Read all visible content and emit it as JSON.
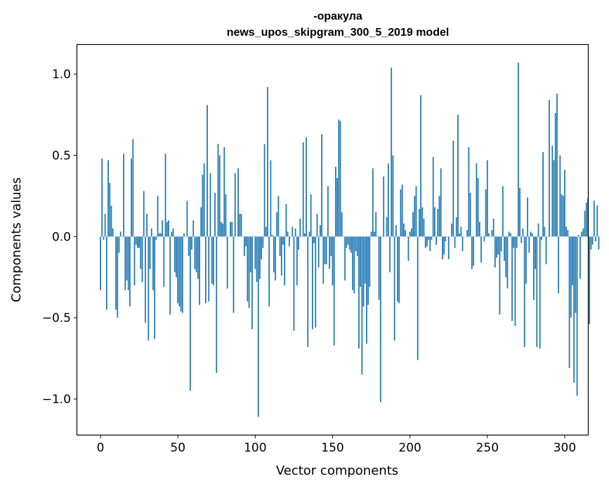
{
  "chart_data": {
    "type": "bar",
    "title": "-оракула",
    "subtitle": "news_upos_skipgram_300_5_2019 model",
    "xlabel": "Vector components",
    "ylabel": "Components values",
    "xlim": [
      -15,
      315
    ],
    "ylim": [
      -1.22,
      1.18
    ],
    "xticks": [
      0,
      50,
      100,
      150,
      200,
      250,
      300
    ],
    "yticks": [
      -1.0,
      -0.5,
      0.0,
      0.5,
      1.0
    ],
    "xtick_labels": [
      "0",
      "50",
      "100",
      "150",
      "200",
      "250",
      "300"
    ],
    "ytick_labels": [
      "−1.0",
      "−0.5",
      "0.0",
      "0.5",
      "1.0"
    ],
    "grid": false,
    "legend": "none",
    "bar_color": "#1f77b4",
    "values": [
      -0.33,
      0.48,
      -0.02,
      0.14,
      -0.45,
      0.47,
      0.33,
      0.19,
      0.05,
      0.0,
      -0.45,
      -0.5,
      -0.1,
      0.03,
      0.0,
      0.51,
      -0.33,
      -0.27,
      -0.33,
      -0.43,
      0.48,
      0.6,
      -0.3,
      -0.05,
      -0.07,
      -0.07,
      -0.2,
      -0.28,
      0.28,
      -0.53,
      0.14,
      -0.64,
      -0.2,
      0.05,
      -0.33,
      -0.63,
      -0.02,
      0.25,
      0.02,
      0.02,
      0.1,
      -0.31,
      0.51,
      0.09,
      0.1,
      -0.48,
      0.03,
      0.05,
      -0.22,
      -0.25,
      -0.41,
      -0.43,
      -0.46,
      -0.47,
      0.02,
      0.0,
      0.22,
      -0.12,
      -0.95,
      -0.08,
      0.1,
      -0.2,
      -0.22,
      -0.26,
      -0.42,
      0.18,
      0.38,
      0.45,
      -0.41,
      0.81,
      -0.4,
      0.39,
      -0.29,
      -0.3,
      0.27,
      -0.84,
      0.57,
      0.5,
      0.09,
      0.08,
      0.55,
      0.26,
      -0.32,
      0.0,
      0.09,
      0.09,
      -0.47,
      0.39,
      0.0,
      0.42,
      0.14,
      0.14,
      0.0,
      -0.12,
      -0.06,
      -0.4,
      -0.44,
      -0.22,
      -0.57,
      0.0,
      -0.2,
      -0.28,
      -1.11,
      -0.26,
      -0.14,
      -0.07,
      0.57,
      0.06,
      0.92,
      -0.43,
      0.47,
      0.01,
      -0.22,
      -0.27,
      0.15,
      0.25,
      -0.12,
      -0.24,
      -0.05,
      -0.3,
      0.2,
      0.03,
      -0.06,
      0.0,
      0.06,
      -0.58,
      0.05,
      -0.3,
      -0.08,
      0.11,
      0.0,
      0.58,
      0.02,
      0.61,
      -0.68,
      0.03,
      0.26,
      -0.57,
      -0.04,
      -0.56,
      0.14,
      -0.19,
      0.07,
      0.63,
      -0.29,
      -0.17,
      -0.17,
      0.31,
      -0.2,
      -0.12,
      -0.3,
      -0.67,
      0.43,
      0.36,
      0.72,
      0.71,
      0.15,
      0.0,
      -0.27,
      -0.07,
      -0.05,
      -0.08,
      -0.1,
      -0.33,
      -0.35,
      -0.09,
      -0.12,
      -0.69,
      -0.31,
      -0.85,
      -0.43,
      -0.29,
      -0.66,
      -0.42,
      -0.31,
      0.03,
      0.42,
      0.03,
      0.15,
      0.0,
      -0.39,
      -1.02,
      0.0,
      0.37,
      0.0,
      0.12,
      0.45,
      -0.22,
      1.04,
      0.5,
      -0.64,
      0.07,
      -0.4,
      -0.41,
      0.29,
      0.32,
      0.08,
      0.04,
      0.0,
      -0.15,
      0.03,
      0.05,
      0.15,
      0.25,
      0.31,
      -0.76,
      0.17,
      0.87,
      0.18,
      0.11,
      -0.07,
      -0.06,
      -0.02,
      -0.09,
      -0.02,
      0.49,
      0.18,
      -0.05,
      0.17,
      0.25,
      0.42,
      -0.14,
      -0.11,
      -0.03,
      0.0,
      -0.14,
      0.0,
      0.08,
      0.59,
      -0.07,
      0.12,
      0.75,
      0.02,
      0.06,
      -0.09,
      0.0,
      0.0,
      0.04,
      0.55,
      0.27,
      -0.2,
      -0.18,
      0.0,
      0.45,
      0.36,
      0.09,
      -0.16,
      0.0,
      -0.03,
      0.29,
      0.47,
      0.02,
      0.0,
      0.04,
      0.11,
      -0.19,
      -0.13,
      -0.11,
      -0.48,
      -0.09,
      0.31,
      -0.15,
      -0.25,
      -0.32,
      0.03,
      0.02,
      -0.52,
      -0.07,
      -0.55,
      -0.07,
      1.07,
      0.3,
      -0.04,
      0.05,
      -0.68,
      -0.29,
      0.24,
      -0.1,
      0.03,
      0.02,
      -0.39,
      -0.2,
      -0.68,
      0.08,
      -0.69,
      -0.02,
      0.52,
      0.06,
      -0.17,
      0.0,
      0.84,
      0.0,
      0.56,
      0.47,
      0.76,
      0.88,
      -0.35,
      0.5,
      0.26,
      0.25,
      0.41,
      0.06,
      0.04,
      -0.81,
      -0.5,
      -0.3,
      -0.9,
      -0.47,
      -0.98,
      0.01,
      -0.26,
      0.03,
      0.05,
      0.16,
      0.21,
      0.24,
      -0.54,
      -0.08,
      -0.05,
      0.22,
      -0.03,
      0.19,
      -0.08
    ]
  }
}
